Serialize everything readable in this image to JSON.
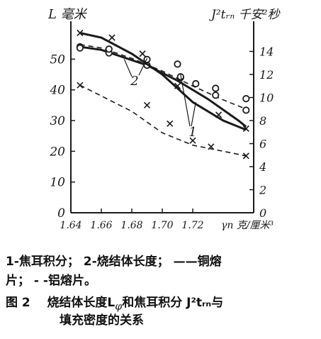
{
  "chart_data": {
    "type": "line",
    "xlim": [
      1.64,
      1.76
    ],
    "x_ticks": [
      "1.64",
      "1.66",
      "1.68",
      "1.70",
      "1.72"
    ],
    "xlabel": "γn 克/厘米³",
    "y_left": {
      "label": "L 毫米",
      "ticks": [
        "0",
        "10",
        "20",
        "30",
        "40",
        "50"
      ],
      "ylim": [
        0,
        60
      ]
    },
    "y_right": {
      "label": "J²tᵣₙ 千安²秒",
      "ticks": [
        "0",
        "2",
        "4",
        "6",
        "8",
        "10",
        "12",
        "14"
      ],
      "ylim": [
        0,
        16
      ]
    },
    "curve_labels": [
      "1",
      "2"
    ],
    "series": [
      {
        "axis": "left",
        "style": "solid",
        "marker": "circle",
        "points": [
          [
            1.646,
            54
          ],
          [
            1.66,
            53
          ],
          [
            1.69,
            48
          ],
          [
            1.71,
            43
          ],
          [
            1.73,
            37
          ],
          [
            1.75,
            30
          ],
          [
            1.755,
            28
          ]
        ],
        "markers": [
          [
            1.646,
            54
          ],
          [
            1.665,
            52
          ],
          [
            1.69,
            48
          ],
          [
            1.712,
            44
          ]
        ]
      },
      {
        "axis": "left",
        "style": "dashed",
        "marker": "x",
        "points": [
          [
            1.646,
            41.5
          ],
          [
            1.66,
            38
          ],
          [
            1.68,
            33
          ],
          [
            1.7,
            26
          ],
          [
            1.72,
            22
          ],
          [
            1.74,
            20
          ],
          [
            1.755,
            18.5
          ]
        ],
        "markers": [
          [
            1.646,
            41.5
          ],
          [
            1.69,
            35
          ],
          [
            1.705,
            29
          ],
          [
            1.72,
            23.5
          ],
          [
            1.732,
            21.5
          ],
          [
            1.755,
            18.5
          ]
        ]
      },
      {
        "axis": "right",
        "style": "solid",
        "marker": "x",
        "points": [
          [
            1.646,
            15.6
          ],
          [
            1.66,
            15.2
          ],
          [
            1.68,
            13.8
          ],
          [
            1.7,
            12
          ],
          [
            1.72,
            9.6
          ],
          [
            1.74,
            8
          ],
          [
            1.755,
            7.2
          ]
        ],
        "markers": [
          [
            1.646,
            15.6
          ],
          [
            1.667,
            15.2
          ],
          [
            1.687,
            13.8
          ],
          [
            1.71,
            11.0
          ],
          [
            1.737,
            8.5
          ],
          [
            1.755,
            7.3
          ]
        ]
      },
      {
        "axis": "right",
        "style": "dashed",
        "marker": "circle",
        "points": [
          [
            1.646,
            14.6
          ],
          [
            1.66,
            14.3
          ],
          [
            1.68,
            13.4
          ],
          [
            1.7,
            12.3
          ],
          [
            1.72,
            11.0
          ],
          [
            1.74,
            9.8
          ],
          [
            1.755,
            9.0
          ]
        ],
        "markers": [
          [
            1.646,
            14.3
          ],
          [
            1.665,
            14.2
          ],
          [
            1.69,
            13.3
          ],
          [
            1.71,
            12.9
          ],
          [
            1.722,
            11.2
          ],
          [
            1.735,
            10.8
          ],
          [
            1.755,
            9.9
          ],
          [
            1.755,
            8.9
          ],
          [
            1.735,
            10.2
          ],
          [
            1.712,
            11.8
          ]
        ]
      }
    ]
  },
  "caption": {
    "legend_line_1": "1-焦耳积分； 2-烧结体长度； ——铜熔",
    "legend_line_2": "片； - -铝熔片。",
    "figure_no": "图 2",
    "title_line_1": "烧结体长度L",
    "title_sub": "φ",
    "title_line_1b": "和焦耳积分 J²tᵣₙ与",
    "title_line_2": "填充密度的关系"
  }
}
